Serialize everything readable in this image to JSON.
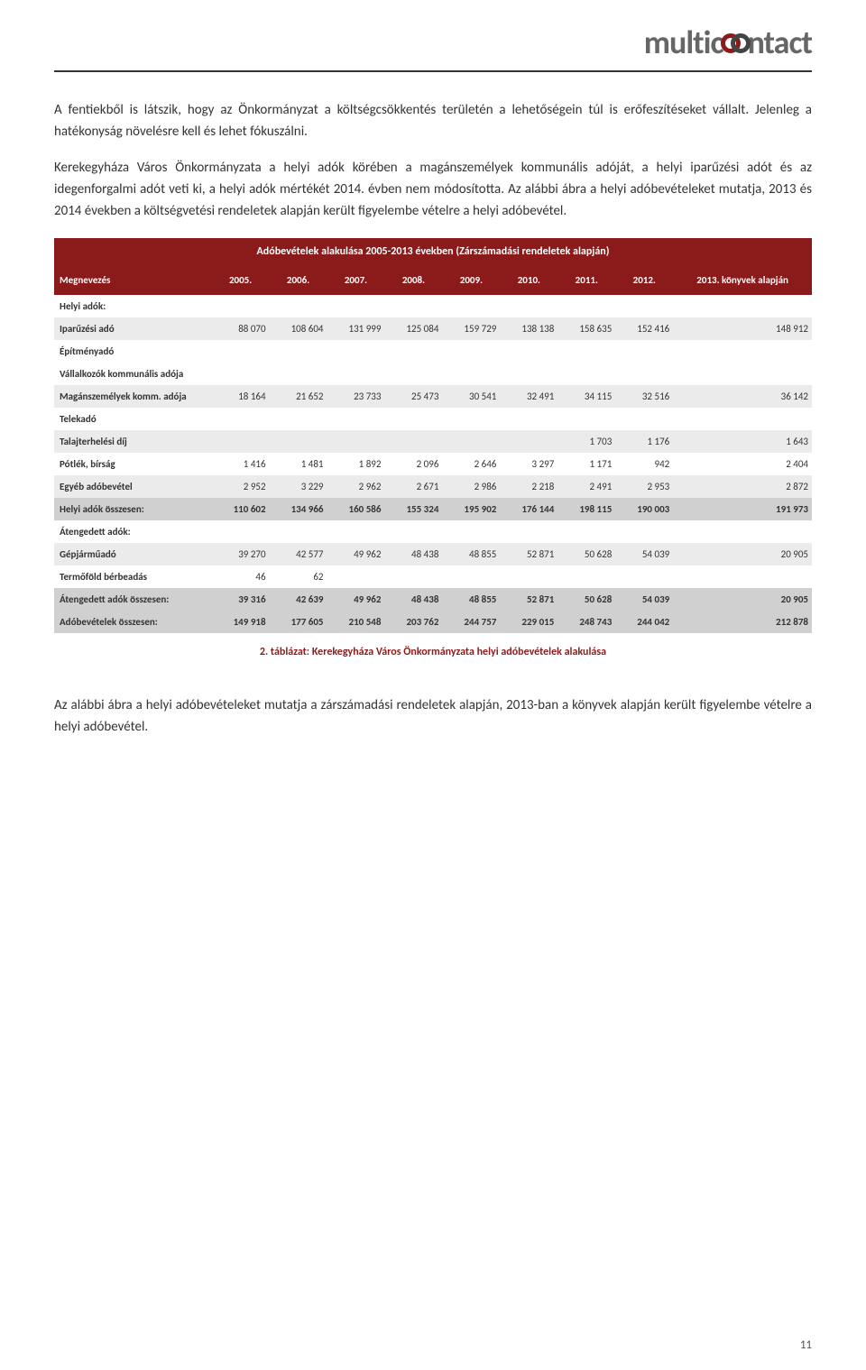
{
  "logo": {
    "part1": "multic",
    "part2": "ntact"
  },
  "para1": "A fentiekből is látszik, hogy az Önkormányzat a költségcsökkentés területén a lehetőségein túl is erőfeszítéseket vállalt. Jelenleg a hatékonyság növelésre kell és lehet fókuszálni.",
  "para2": "Kerekegyháza Város Önkormányzata a helyi adók körében a magánszemélyek kommunális adóját, a helyi iparűzési adót és az idegenforgalmi adót veti ki, a helyi adók mértékét 2014. évben nem módosította. Az alábbi ábra a helyi adóbevételeket mutatja, 2013 és 2014 években a költségvetési rendeletek alapján került figyelembe vételre a helyi adóbevétel.",
  "table": {
    "title": "Adóbevételek alakulása 2005-2013 években (Zárszámadási rendeletek alapján)",
    "columns": [
      "Megnevezés",
      "2005.",
      "2006.",
      "2007.",
      "2008.",
      "2009.",
      "2010.",
      "2011.",
      "2012.",
      "2013. könyvek alapján"
    ],
    "rows": [
      {
        "style": "section-row",
        "cells": [
          "Helyi adók:",
          "",
          "",
          "",
          "",
          "",
          "",
          "",
          "",
          ""
        ]
      },
      {
        "style": "gray-row",
        "cells": [
          "Iparűzési adó",
          "88 070",
          "108 604",
          "131 999",
          "125 084",
          "159 729",
          "138 138",
          "158 635",
          "152 416",
          "148 912"
        ]
      },
      {
        "style": "white-row",
        "cells": [
          "Építményadó",
          "",
          "",
          "",
          "",
          "",
          "",
          "",
          "",
          ""
        ]
      },
      {
        "style": "white-row",
        "cells": [
          "Vállalkozók kommunális adója",
          "",
          "",
          "",
          "",
          "",
          "",
          "",
          "",
          ""
        ]
      },
      {
        "style": "gray-row",
        "cells": [
          "Magánszemélyek komm. adója",
          "18 164",
          "21 652",
          "23 733",
          "25 473",
          "30 541",
          "32 491",
          "34 115",
          "32 516",
          "36 142"
        ]
      },
      {
        "style": "white-row",
        "cells": [
          "Telekadó",
          "",
          "",
          "",
          "",
          "",
          "",
          "",
          "",
          ""
        ]
      },
      {
        "style": "gray-row",
        "cells": [
          "Talajterhelési díj",
          "",
          "",
          "",
          "",
          "",
          "",
          "1 703",
          "1 176",
          "1 643"
        ]
      },
      {
        "style": "white-row",
        "cells": [
          "Pótlék, bírság",
          "1 416",
          "1 481",
          "1 892",
          "2 096",
          "2 646",
          "3 297",
          "1 171",
          "942",
          "2 404"
        ]
      },
      {
        "style": "gray-row",
        "cells": [
          "Egyéb adóbevétel",
          "2 952",
          "3 229",
          "2 962",
          "2 671",
          "2 986",
          "2 218",
          "2 491",
          "2 953",
          "2 872"
        ]
      },
      {
        "style": "total-row",
        "cells": [
          "Helyi adók összesen:",
          "110 602",
          "134 966",
          "160 586",
          "155 324",
          "195 902",
          "176 144",
          "198 115",
          "190 003",
          "191 973"
        ]
      },
      {
        "style": "section-row",
        "cells": [
          "Átengedett adók:",
          "",
          "",
          "",
          "",
          "",
          "",
          "",
          "",
          ""
        ]
      },
      {
        "style": "gray-row",
        "cells": [
          "Gépjárműadó",
          "39 270",
          "42 577",
          "49 962",
          "48 438",
          "48 855",
          "52 871",
          "50 628",
          "54 039",
          "20 905"
        ]
      },
      {
        "style": "white-row",
        "cells": [
          "Termőföld bérbeadás",
          "46",
          "62",
          "",
          "",
          "",
          "",
          "",
          "",
          ""
        ]
      },
      {
        "style": "total-row",
        "cells": [
          "Átengedett adók összesen:",
          "39 316",
          "42 639",
          "49 962",
          "48 438",
          "48 855",
          "52 871",
          "50 628",
          "54 039",
          "20 905"
        ]
      },
      {
        "style": "total-row",
        "cells": [
          "Adóbevételek összesen:",
          "149 918",
          "177 605",
          "210 548",
          "203 762",
          "244 757",
          "229 015",
          "248 743",
          "244 042",
          "212 878"
        ]
      }
    ],
    "caption": "2. táblázat: Kerekegyháza Város Önkormányzata helyi adóbevételek alakulása"
  },
  "para3": "Az alábbi ábra a helyi adóbevételeket mutatja a zárszámadási rendeletek alapján, 2013-ban a könyvek alapján került figyelembe vételre a helyi adóbevétel.",
  "page_number": "11",
  "colors": {
    "header_bg": "#8b1a1a",
    "header_text": "#ffffff",
    "row_gray": "#ebebeb",
    "row_total": "#d0d0d0",
    "text": "#333333"
  }
}
